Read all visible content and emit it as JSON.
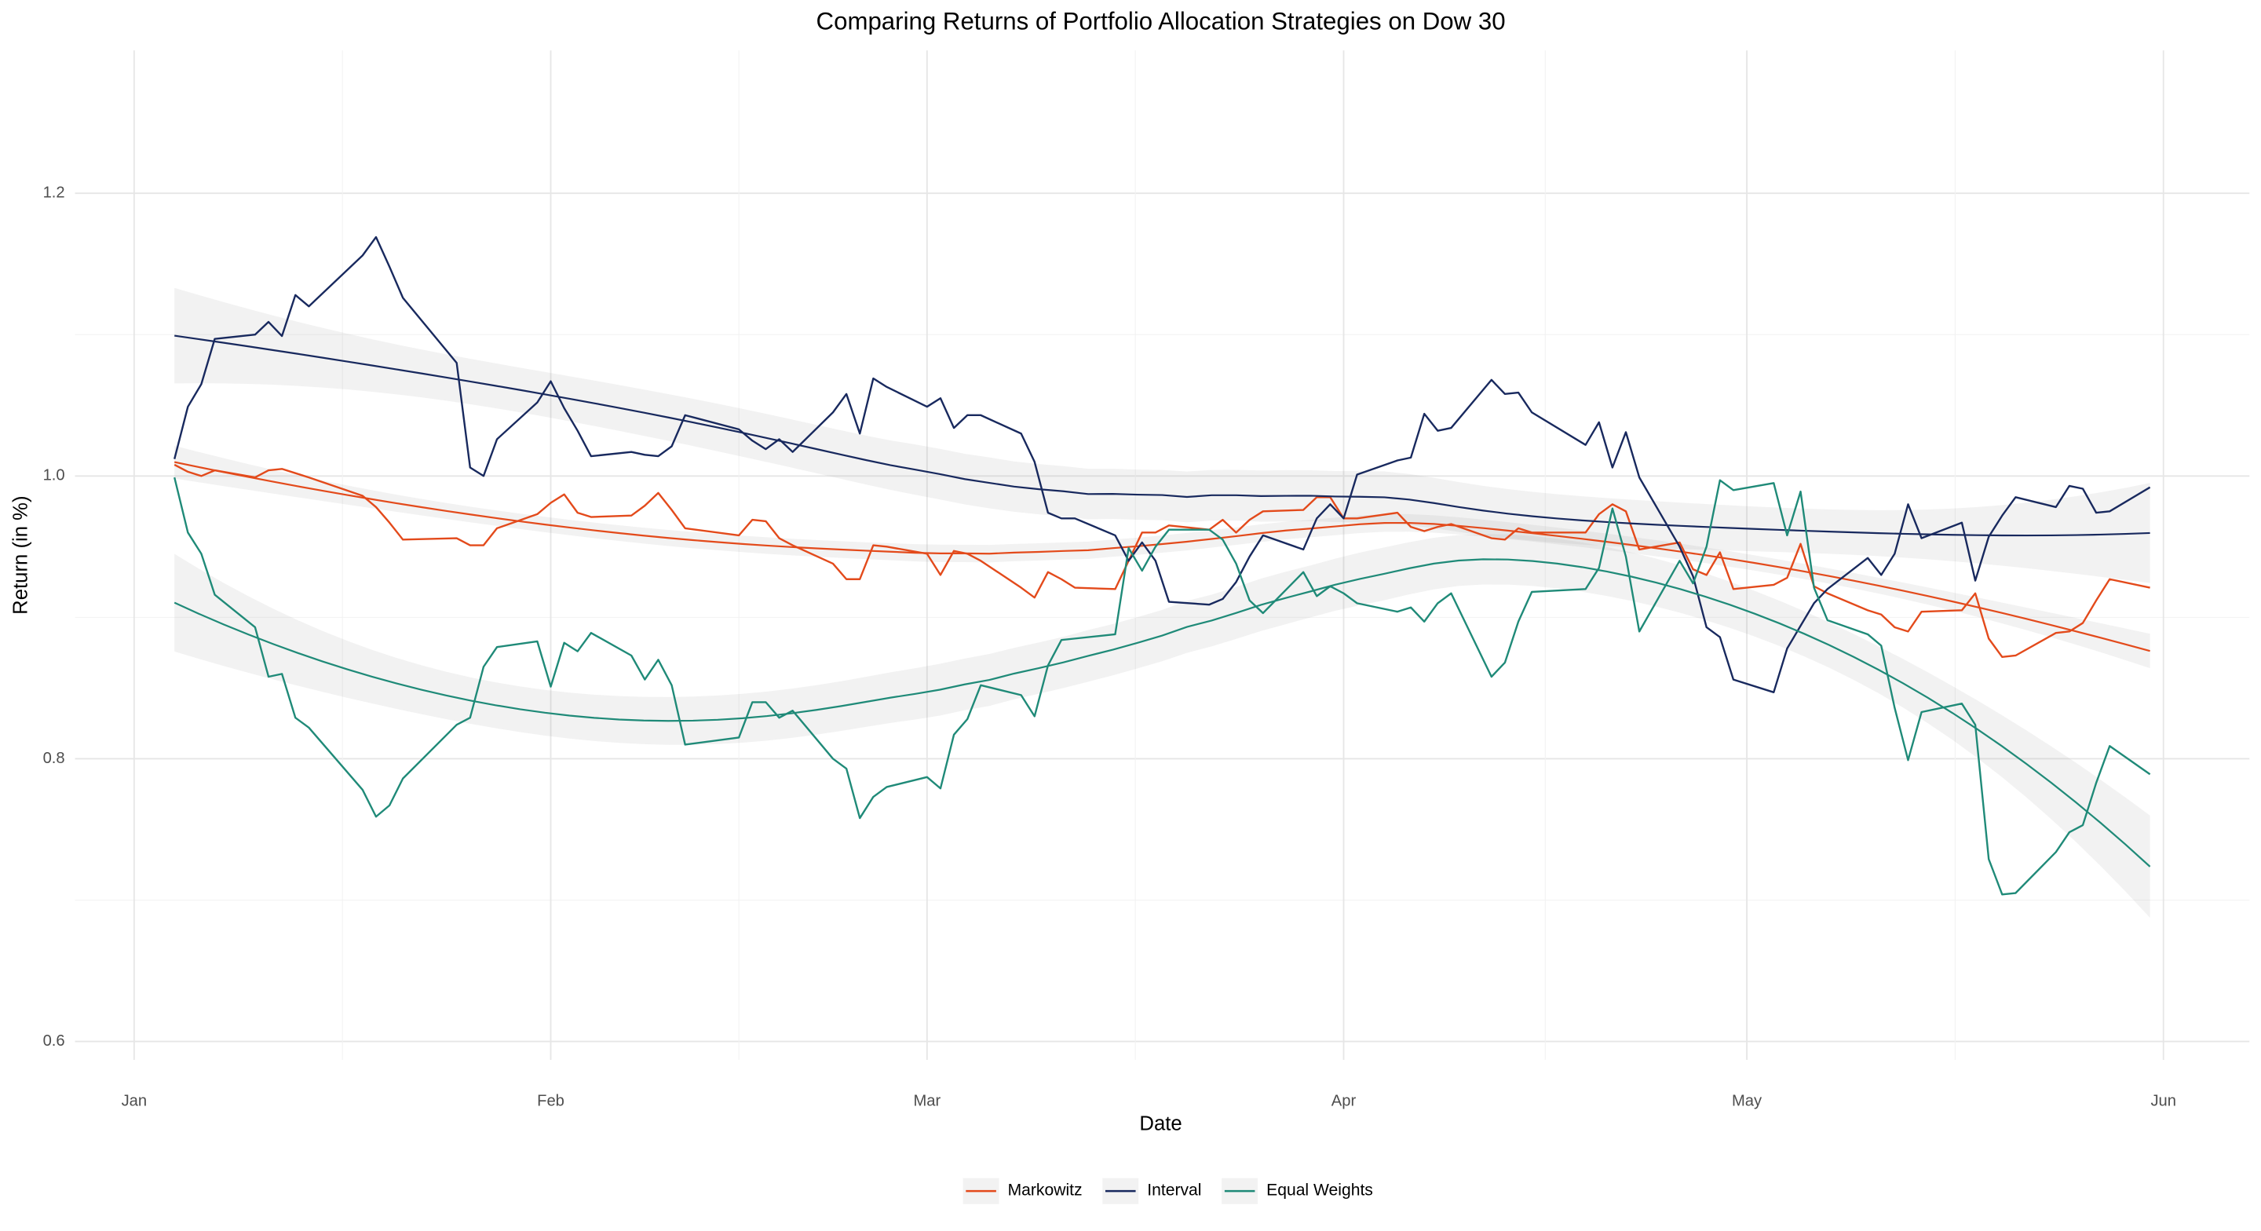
{
  "chart_data": {
    "type": "line",
    "title": "Comparing Returns of Portfolio Allocation Strategies on Dow 30",
    "x_label": "Date",
    "y_label": "Return (in %)",
    "legend": "bottom",
    "grid": true,
    "smooth": true,
    "xlim": [
      -3.4,
      158.4
    ],
    "xticks": [
      {
        "value": 1,
        "label": "Jan"
      },
      {
        "value": 32,
        "label": "Feb"
      },
      {
        "value": 60,
        "label": "Mar"
      },
      {
        "value": 91,
        "label": "Apr"
      },
      {
        "value": 121,
        "label": "May"
      },
      {
        "value": 152,
        "label": "Jun"
      }
    ],
    "ylim": [
      0.587,
      1.301
    ],
    "yticks": [
      0.6,
      0.8,
      {
        "value": 1.0,
        "label": "1.0"
      },
      1.2
    ],
    "x": [
      4,
      5,
      6,
      7,
      10,
      11,
      12,
      13,
      14,
      18,
      19,
      20,
      21,
      25,
      26,
      27,
      28,
      31,
      32,
      33,
      34,
      35,
      38,
      39,
      40,
      41,
      42,
      46,
      47,
      48,
      49,
      50,
      53,
      54,
      55,
      56,
      57,
      60,
      61,
      62,
      63,
      64,
      67,
      68,
      69,
      70,
      71,
      74,
      75,
      76,
      77,
      78,
      81,
      82,
      83,
      84,
      85,
      88,
      89,
      90,
      91,
      92,
      95,
      96,
      97,
      98,
      99,
      102,
      103,
      104,
      105,
      109,
      110,
      111,
      112,
      113,
      116,
      117,
      118,
      119,
      120,
      123,
      124,
      125,
      126,
      127,
      130,
      131,
      132,
      133,
      134,
      137,
      138,
      139,
      140,
      141,
      144,
      145,
      146,
      147,
      148,
      151
    ],
    "series": [
      {
        "name": "Markowitz",
        "color": "#e34a1b",
        "values": [
          1.008,
          1.003,
          1.0,
          1.004,
          0.999,
          1.004,
          1.005,
          1.002,
          0.999,
          0.986,
          0.978,
          0.967,
          0.955,
          0.956,
          0.951,
          0.951,
          0.963,
          0.973,
          0.981,
          0.987,
          0.974,
          0.971,
          0.972,
          0.979,
          0.988,
          0.976,
          0.963,
          0.958,
          0.969,
          0.968,
          0.956,
          0.951,
          0.938,
          0.927,
          0.927,
          0.951,
          0.95,
          0.945,
          0.93,
          0.947,
          0.945,
          0.94,
          0.921,
          0.914,
          0.932,
          0.927,
          0.921,
          0.92,
          0.94,
          0.96,
          0.96,
          0.965,
          0.962,
          0.969,
          0.96,
          0.969,
          0.975,
          0.976,
          0.985,
          0.985,
          0.97,
          0.97,
          0.974,
          0.964,
          0.961,
          0.964,
          0.966,
          0.956,
          0.955,
          0.963,
          0.96,
          0.96,
          0.973,
          0.98,
          0.975,
          0.948,
          0.953,
          0.934,
          0.93,
          0.946,
          0.92,
          0.923,
          0.928,
          0.952,
          0.922,
          0.917,
          0.905,
          0.902,
          0.893,
          0.89,
          0.904,
          0.905,
          0.917,
          0.885,
          0.872,
          0.873,
          0.889,
          0.89,
          0.896,
          0.912,
          0.927,
          0.921
        ]
      },
      {
        "name": "Interval",
        "color": "#18295e",
        "values": [
          1.012,
          1.049,
          1.065,
          1.097,
          1.1,
          1.109,
          1.099,
          1.128,
          1.12,
          1.156,
          1.169,
          1.148,
          1.126,
          1.08,
          1.006,
          1.0,
          1.026,
          1.052,
          1.067,
          1.048,
          1.032,
          1.014,
          1.017,
          1.015,
          1.014,
          1.021,
          1.043,
          1.033,
          1.025,
          1.019,
          1.026,
          1.017,
          1.045,
          1.058,
          1.03,
          1.069,
          1.063,
          1.049,
          1.055,
          1.034,
          1.043,
          1.043,
          1.03,
          1.01,
          0.974,
          0.97,
          0.97,
          0.958,
          0.94,
          0.953,
          0.94,
          0.911,
          0.909,
          0.913,
          0.925,
          0.943,
          0.958,
          0.948,
          0.97,
          0.98,
          0.97,
          1.001,
          1.011,
          1.013,
          1.044,
          1.032,
          1.034,
          1.068,
          1.058,
          1.059,
          1.045,
          1.022,
          1.038,
          1.006,
          1.031,
          0.999,
          0.95,
          0.929,
          0.893,
          0.886,
          0.856,
          0.847,
          0.878,
          0.894,
          0.91,
          0.92,
          0.942,
          0.93,
          0.945,
          0.98,
          0.956,
          0.967,
          0.926,
          0.957,
          0.972,
          0.985,
          0.978,
          0.993,
          0.991,
          0.974,
          0.975,
          0.992
        ]
      },
      {
        "name": "Equal Weights",
        "color": "#1f8a78",
        "values": [
          0.999,
          0.96,
          0.945,
          0.916,
          0.893,
          0.858,
          0.86,
          0.829,
          0.822,
          0.778,
          0.759,
          0.767,
          0.786,
          0.824,
          0.829,
          0.865,
          0.879,
          0.883,
          0.851,
          0.882,
          0.876,
          0.889,
          0.873,
          0.856,
          0.87,
          0.852,
          0.81,
          0.815,
          0.84,
          0.84,
          0.829,
          0.834,
          0.8,
          0.793,
          0.758,
          0.773,
          0.78,
          0.787,
          0.779,
          0.817,
          0.828,
          0.852,
          0.845,
          0.83,
          0.866,
          0.884,
          0.885,
          0.888,
          0.949,
          0.933,
          0.95,
          0.962,
          0.962,
          0.955,
          0.938,
          0.912,
          0.903,
          0.932,
          0.915,
          0.922,
          0.917,
          0.91,
          0.904,
          0.907,
          0.897,
          0.91,
          0.917,
          0.858,
          0.868,
          0.897,
          0.918,
          0.92,
          0.935,
          0.977,
          0.943,
          0.89,
          0.94,
          0.924,
          0.95,
          0.997,
          0.99,
          0.995,
          0.958,
          0.989,
          0.921,
          0.898,
          0.888,
          0.88,
          0.836,
          0.799,
          0.833,
          0.839,
          0.824,
          0.729,
          0.704,
          0.705,
          0.734,
          0.748,
          0.753,
          0.783,
          0.809,
          0.789
        ]
      }
    ]
  }
}
